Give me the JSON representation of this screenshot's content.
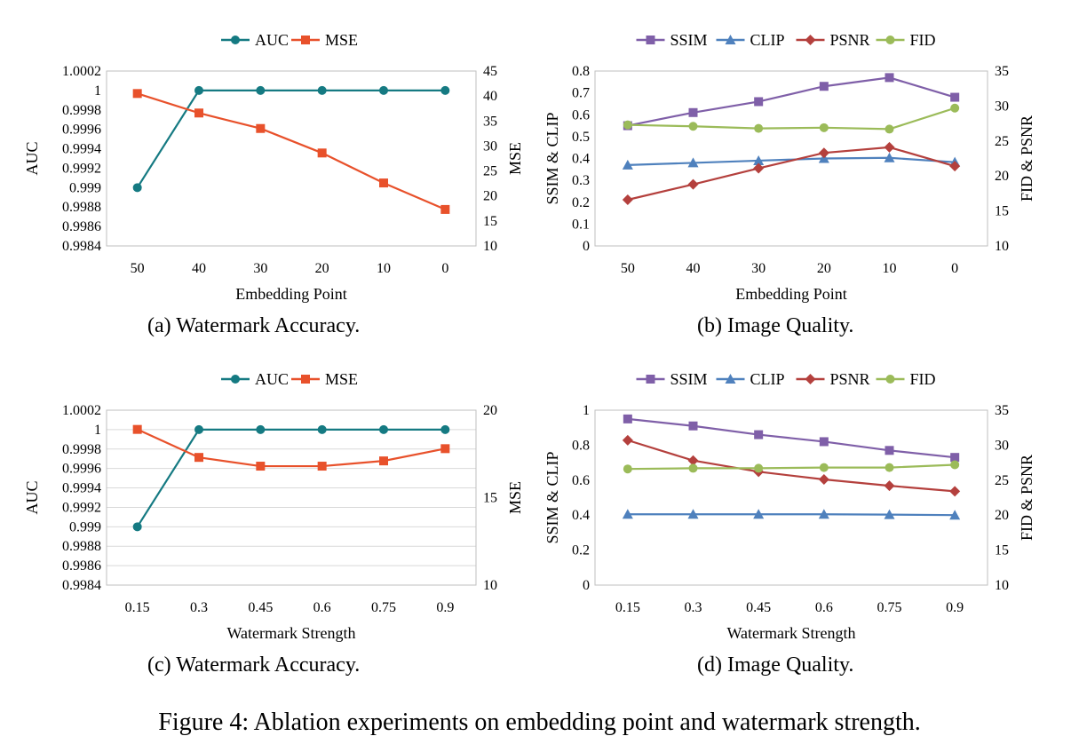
{
  "figure": {
    "caption": "Figure 4: Ablation experiments on embedding point and watermark strength."
  },
  "colors": {
    "AUC": "#157A82",
    "MSE": "#E8512B",
    "SSIM": "#7F5FA8",
    "CLIP": "#4F81BD",
    "PSNR": "#B4403D",
    "FID": "#9BBB59",
    "grid": "#D9D9D9"
  },
  "chart_data": [
    {
      "id": "a",
      "type": "line",
      "caption": "(a)  Watermark Accuracy.",
      "categories": [
        "50",
        "40",
        "30",
        "20",
        "10",
        "0"
      ],
      "xlabel": "Embedding Point",
      "ylabel_left": "AUC",
      "ylabel_right": "MSE",
      "left_axis": {
        "min": 0.9984,
        "max": 1.0002,
        "ticks": [
          0.9984,
          0.9986,
          0.9988,
          0.999,
          0.9992,
          0.9994,
          0.9996,
          0.9998,
          1,
          1.0002
        ],
        "tick_labels": [
          "0.9984",
          "0.9986",
          "0.9988",
          "0.999",
          "0.9992",
          "0.9994",
          "0.9996",
          "0.9998",
          "1",
          "1.0002"
        ]
      },
      "right_axis": {
        "min": 10,
        "max": 45,
        "ticks": [
          10,
          15,
          20,
          25,
          30,
          35,
          40,
          45
        ],
        "tick_labels": [
          "10",
          "15",
          "20",
          "25",
          "30",
          "35",
          "40",
          "45"
        ]
      },
      "grid": false,
      "legend_position": "top",
      "series": [
        {
          "name": "AUC",
          "axis": "left",
          "marker": "circle",
          "values": [
            0.999,
            1,
            1,
            1,
            1,
            1
          ]
        },
        {
          "name": "MSE",
          "axis": "right",
          "marker": "square",
          "values": [
            40.5,
            36.6,
            33.5,
            28.6,
            22.6,
            17.3
          ]
        }
      ]
    },
    {
      "id": "b",
      "type": "line",
      "caption": "(b)  Image Quality.",
      "categories": [
        "50",
        "40",
        "30",
        "20",
        "10",
        "0"
      ],
      "xlabel": "Embedding Point",
      "ylabel_left": "SSIM & CLIP",
      "ylabel_right": "FID & PSNR",
      "left_axis": {
        "min": 0,
        "max": 0.8,
        "ticks": [
          0,
          0.1,
          0.2,
          0.3,
          0.4,
          0.5,
          0.6,
          0.7,
          0.8
        ],
        "tick_labels": [
          "0",
          "0.1",
          "0.2",
          "0.3",
          "0.4",
          "0.5",
          "0.6",
          "0.7",
          "0.8"
        ]
      },
      "right_axis": {
        "min": 10,
        "max": 35,
        "ticks": [
          10,
          15,
          20,
          25,
          30,
          35
        ],
        "tick_labels": [
          "10",
          "15",
          "20",
          "25",
          "30",
          "35"
        ]
      },
      "grid": false,
      "legend_position": "top",
      "series": [
        {
          "name": "SSIM",
          "axis": "left",
          "marker": "square",
          "values": [
            0.55,
            0.61,
            0.66,
            0.73,
            0.77,
            0.68
          ]
        },
        {
          "name": "CLIP",
          "axis": "left",
          "marker": "triangle",
          "values": [
            0.37,
            0.38,
            0.39,
            0.4,
            0.403,
            0.383
          ]
        },
        {
          "name": "PSNR",
          "axis": "right",
          "marker": "diamond",
          "values": [
            16.6,
            18.8,
            21.1,
            23.3,
            24.1,
            21.4
          ]
        },
        {
          "name": "FID",
          "axis": "right",
          "marker": "circle",
          "values": [
            27.3,
            27.1,
            26.8,
            26.9,
            26.7,
            29.7
          ]
        }
      ]
    },
    {
      "id": "c",
      "type": "line",
      "caption": "(c)  Watermark Accuracy.",
      "categories": [
        "0.15",
        "0.3",
        "0.45",
        "0.6",
        "0.75",
        "0.9"
      ],
      "xlabel": "Watermark Strength",
      "ylabel_left": "AUC",
      "ylabel_right": "MSE",
      "left_axis": {
        "min": 0.9984,
        "max": 1.0002,
        "ticks": [
          0.9984,
          0.9986,
          0.9988,
          0.999,
          0.9992,
          0.9994,
          0.9996,
          0.9998,
          1,
          1.0002
        ],
        "tick_labels": [
          "0.9984",
          "0.9986",
          "0.9988",
          "0.999",
          "0.9992",
          "0.9994",
          "0.9996",
          "0.9998",
          "1",
          "1.0002"
        ]
      },
      "right_axis": {
        "min": 10,
        "max": 20,
        "ticks": [
          10,
          15,
          20
        ],
        "tick_labels": [
          "10",
          "15",
          "20"
        ]
      },
      "grid": true,
      "legend_position": "top",
      "series": [
        {
          "name": "AUC",
          "axis": "left",
          "marker": "circle",
          "values": [
            0.999,
            1,
            1,
            1,
            1,
            1
          ]
        },
        {
          "name": "MSE",
          "axis": "right",
          "marker": "square",
          "values": [
            18.9,
            17.3,
            16.8,
            16.8,
            17.1,
            17.8
          ]
        }
      ]
    },
    {
      "id": "d",
      "type": "line",
      "caption": "(d)  Image Quality.",
      "categories": [
        "0.15",
        "0.3",
        "0.45",
        "0.6",
        "0.75",
        "0.9"
      ],
      "xlabel": "Watermark Strength",
      "ylabel_left": "SSIM & CLIP",
      "ylabel_right": "FID & PSNR",
      "left_axis": {
        "min": 0,
        "max": 1,
        "ticks": [
          0,
          0.2,
          0.4,
          0.6,
          0.8,
          1
        ],
        "tick_labels": [
          "0",
          "0.2",
          "0.4",
          "0.6",
          "0.8",
          "1"
        ]
      },
      "right_axis": {
        "min": 10,
        "max": 35,
        "ticks": [
          10,
          15,
          20,
          25,
          30,
          35
        ],
        "tick_labels": [
          "10",
          "15",
          "20",
          "25",
          "30",
          "35"
        ]
      },
      "grid": false,
      "legend_position": "top",
      "series": [
        {
          "name": "SSIM",
          "axis": "left",
          "marker": "square",
          "values": [
            0.95,
            0.91,
            0.86,
            0.82,
            0.77,
            0.73
          ]
        },
        {
          "name": "CLIP",
          "axis": "left",
          "marker": "triangle",
          "values": [
            0.405,
            0.405,
            0.405,
            0.405,
            0.403,
            0.4
          ]
        },
        {
          "name": "PSNR",
          "axis": "right",
          "marker": "diamond",
          "values": [
            30.7,
            27.8,
            26.2,
            25.1,
            24.2,
            23.4
          ]
        },
        {
          "name": "FID",
          "axis": "right",
          "marker": "circle",
          "values": [
            26.6,
            26.7,
            26.7,
            26.8,
            26.8,
            27.2
          ]
        }
      ]
    }
  ]
}
